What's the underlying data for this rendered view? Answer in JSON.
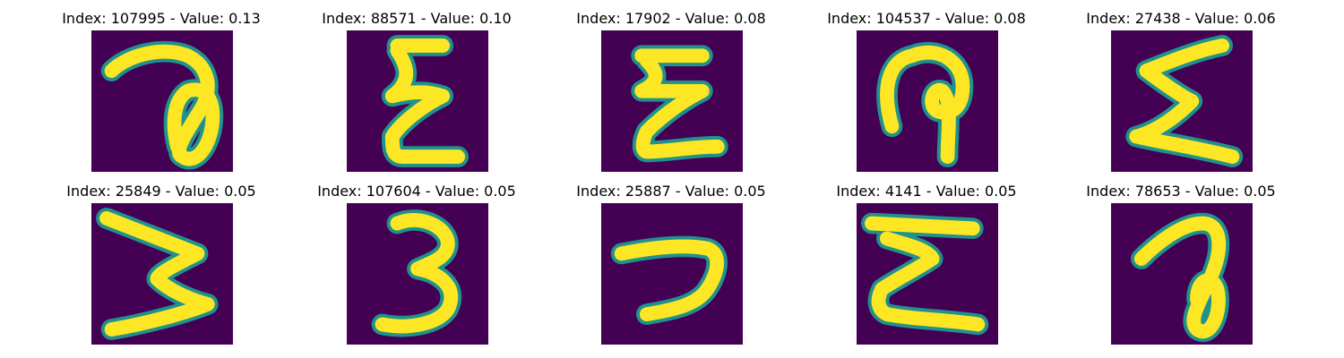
{
  "figure": {
    "title_template": "Index: {index} - Value: {value}",
    "colors": {
      "background": "#440154",
      "stroke": "#fde725",
      "edge": "#21918c"
    },
    "panels": [
      {
        "index": "107995",
        "value": "0.13",
        "glyph": "loop-digit"
      },
      {
        "index": "88571",
        "value": "0.10",
        "glyph": "sigma-like"
      },
      {
        "index": "17902",
        "value": "0.08",
        "glyph": "sigma-like"
      },
      {
        "index": "104537",
        "value": "0.08",
        "glyph": "hook-loop"
      },
      {
        "index": "27438",
        "value": "0.06",
        "glyph": "sigma"
      },
      {
        "index": "25849",
        "value": "0.05",
        "glyph": "rotated-w"
      },
      {
        "index": "107604",
        "value": "0.05",
        "glyph": "three"
      },
      {
        "index": "25887",
        "value": "0.05",
        "glyph": "hook"
      },
      {
        "index": "4141",
        "value": "0.05",
        "glyph": "sigma-wavy"
      },
      {
        "index": "78653",
        "value": "0.05",
        "glyph": "loop-digit"
      }
    ]
  }
}
